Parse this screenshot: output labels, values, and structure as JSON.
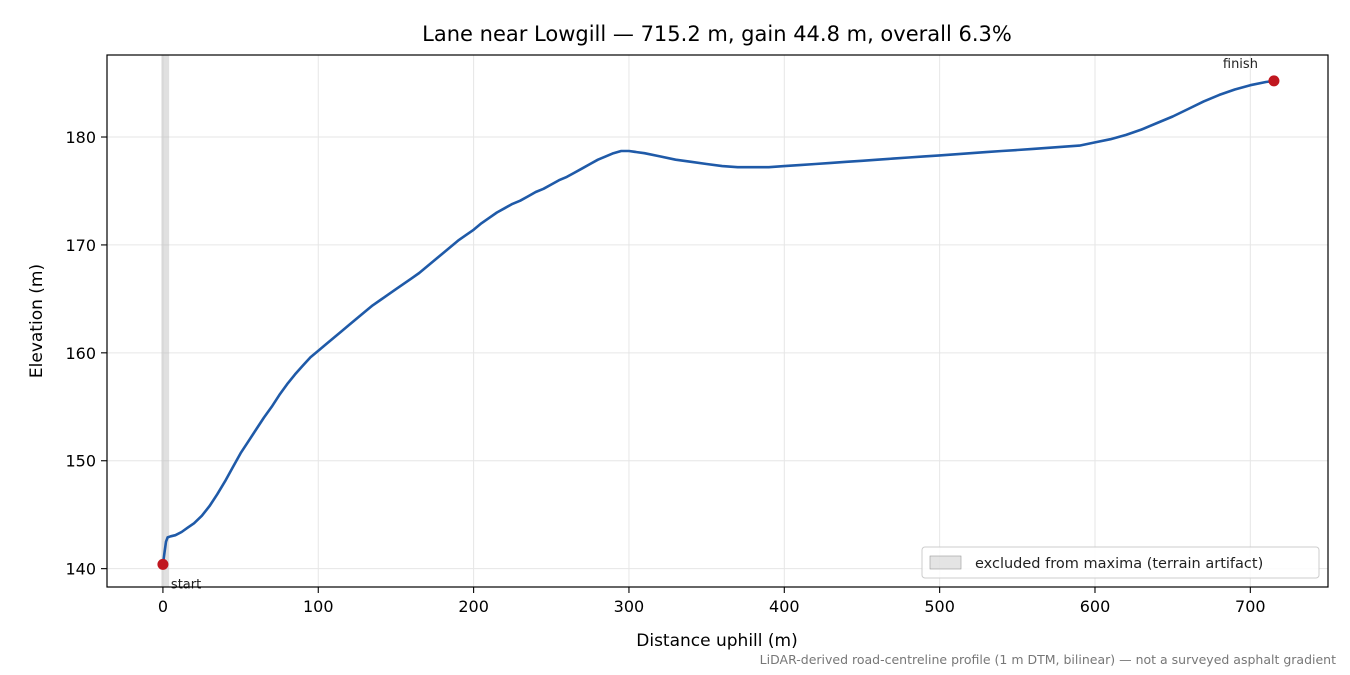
{
  "chart_data": {
    "type": "line",
    "title": "Lane near Lowgill — 715.2 m, gain 44.8 m, overall 6.3%",
    "xlabel": "Distance uphill (m)",
    "ylabel": "Elevation (m)",
    "xlim": [
      -36,
      750
    ],
    "ylim": [
      138.3,
      187.6
    ],
    "x_ticks": [
      0,
      100,
      200,
      300,
      400,
      500,
      600,
      700
    ],
    "y_ticks": [
      140,
      150,
      160,
      170,
      180
    ],
    "grid": true,
    "legend_placement": "lower-right",
    "series": [
      {
        "color": "#1f5aa8",
        "x": [
          0,
          1,
          2,
          3,
          5,
          8,
          12,
          16,
          20,
          25,
          30,
          35,
          40,
          45,
          50,
          55,
          60,
          65,
          70,
          75,
          80,
          85,
          90,
          95,
          100,
          105,
          110,
          115,
          120,
          125,
          130,
          135,
          140,
          145,
          150,
          155,
          160,
          165,
          170,
          175,
          180,
          185,
          190,
          195,
          200,
          205,
          210,
          215,
          220,
          225,
          230,
          235,
          240,
          245,
          250,
          255,
          260,
          265,
          270,
          275,
          280,
          285,
          290,
          295,
          300,
          305,
          310,
          320,
          330,
          340,
          350,
          360,
          370,
          380,
          390,
          400,
          410,
          420,
          430,
          440,
          450,
          460,
          470,
          480,
          490,
          500,
          510,
          520,
          530,
          540,
          550,
          560,
          570,
          580,
          590,
          600,
          610,
          620,
          630,
          640,
          650,
          660,
          670,
          680,
          690,
          700,
          710,
          715.2
        ],
        "values": [
          140.4,
          141.5,
          142.5,
          142.9,
          143.0,
          143.1,
          143.4,
          143.8,
          144.2,
          144.9,
          145.8,
          146.9,
          148.1,
          149.4,
          150.7,
          151.8,
          152.9,
          154.0,
          155.0,
          156.1,
          157.1,
          158.0,
          158.8,
          159.6,
          160.2,
          160.8,
          161.4,
          162.0,
          162.6,
          163.2,
          163.8,
          164.4,
          164.9,
          165.4,
          165.9,
          166.4,
          166.9,
          167.4,
          168.0,
          168.6,
          169.2,
          169.8,
          170.4,
          170.9,
          171.4,
          172.0,
          172.5,
          173.0,
          173.4,
          173.8,
          174.1,
          174.5,
          174.9,
          175.2,
          175.6,
          176.0,
          176.3,
          176.7,
          177.1,
          177.5,
          177.9,
          178.2,
          178.5,
          178.7,
          178.7,
          178.6,
          178.5,
          178.2,
          177.9,
          177.7,
          177.5,
          177.3,
          177.2,
          177.2,
          177.2,
          177.3,
          177.4,
          177.5,
          177.6,
          177.7,
          177.8,
          177.9,
          178.0,
          178.1,
          178.2,
          178.3,
          178.4,
          178.5,
          178.6,
          178.7,
          178.8,
          178.9,
          179.0,
          179.1,
          179.2,
          179.5,
          179.8,
          180.2,
          180.7,
          181.3,
          181.9,
          182.6,
          183.3,
          183.9,
          184.4,
          184.8,
          185.1,
          185.2
        ]
      }
    ],
    "markers": [
      {
        "x": 0,
        "y": 140.4,
        "label": "start",
        "color": "#c0171f"
      },
      {
        "x": 715.2,
        "y": 185.2,
        "label": "finish",
        "color": "#c0171f"
      }
    ],
    "excluded_band": {
      "x0": -1,
      "x1": 4,
      "color": "#bbbbbb"
    },
    "legend": [
      "excluded from maxima (terrain artifact)"
    ],
    "footnote": "LiDAR-derived road-centreline profile (1 m DTM, bilinear) — not a surveyed asphalt gradient"
  }
}
